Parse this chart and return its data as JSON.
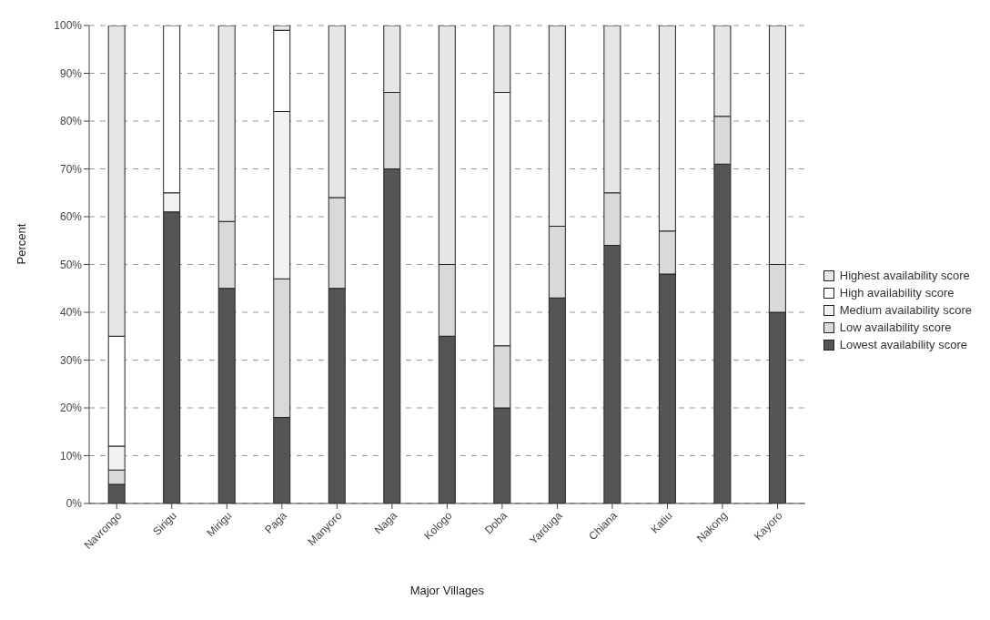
{
  "chart_data": {
    "type": "bar",
    "stacked": true,
    "xlabel": "Major Villages",
    "ylabel": "Percent",
    "categories": [
      "Navrongo",
      "Sirigu",
      "Mirigu",
      "Paga",
      "Manyoro",
      "Naga",
      "Kologo",
      "Doba",
      "Yarduga",
      "Chiana",
      "Katiu",
      "Nakong",
      "Kayoro"
    ],
    "series": [
      {
        "name": "Lowest availability score",
        "color": "#555555",
        "values": [
          4,
          61,
          45,
          18,
          45,
          70,
          35,
          20,
          43,
          54,
          48,
          71,
          40
        ]
      },
      {
        "name": "Low availability score",
        "color": "#d9d9d9",
        "values": [
          3,
          0,
          14,
          29,
          19,
          16,
          15,
          13,
          15,
          11,
          9,
          10,
          10
        ]
      },
      {
        "name": "Medium availability score",
        "color": "#f2f2f2",
        "values": [
          5,
          4,
          0,
          35,
          0,
          0,
          0,
          53,
          0,
          0,
          0,
          0,
          0
        ]
      },
      {
        "name": "High availability score",
        "color": "#ffffff",
        "values": [
          23,
          35,
          0,
          17,
          0,
          0,
          0,
          0,
          0,
          0,
          0,
          0,
          0
        ]
      },
      {
        "name": "Highest availability score",
        "color": "#e6e6e6",
        "values": [
          65,
          0,
          41,
          1,
          36,
          14,
          50,
          14,
          42,
          35,
          43,
          19,
          50
        ]
      }
    ],
    "ylim": [
      0,
      100
    ],
    "yticks": [
      {
        "value": 0,
        "label": "0%"
      },
      {
        "value": 10,
        "label": "10%"
      },
      {
        "value": 20,
        "label": "20%"
      },
      {
        "value": 30,
        "label": "30%"
      },
      {
        "value": 40,
        "label": "40%"
      },
      {
        "value": 50,
        "label": "50%"
      },
      {
        "value": 60,
        "label": "60%"
      },
      {
        "value": 70,
        "label": "70%"
      },
      {
        "value": 80,
        "label": "80%"
      },
      {
        "value": 90,
        "label": "90%"
      },
      {
        "value": 100,
        "label": "100%"
      }
    ],
    "grid": "y",
    "legend": "right"
  }
}
